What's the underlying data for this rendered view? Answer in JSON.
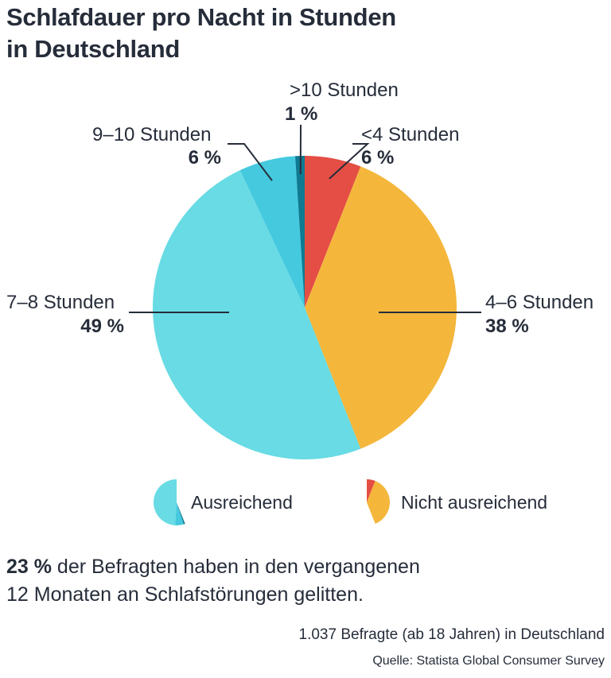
{
  "title_line1": "Schlafdauer pro Nacht in Stunden",
  "title_line2": "in Deutschland",
  "chart_data": {
    "type": "pie",
    "title": "Schlafdauer pro Nacht in Stunden in Deutschland",
    "start": "12 o'clock, clockwise",
    "slices": [
      {
        "key": "lt4",
        "label": "<4 Stunden",
        "value": 6,
        "value_label": "6 %",
        "group": "Nicht ausreichend",
        "color": "#e44e45"
      },
      {
        "key": "4to6",
        "label": "4–6 Stunden",
        "value": 38,
        "value_label": "38 %",
        "group": "Nicht ausreichend",
        "color": "#f4b73c"
      },
      {
        "key": "7to8",
        "label": "7–8 Stunden",
        "value": 49,
        "value_label": "49 %",
        "group": "Ausreichend",
        "color": "#68dbe4"
      },
      {
        "key": "9to10",
        "label": "9–10 Stunden",
        "value": 6,
        "value_label": "6 %",
        "group": "Ausreichend",
        "color": "#45c9df"
      },
      {
        "key": "gt10",
        "label": ">10 Stunden",
        "value": 1,
        "value_label": "1 %",
        "group": "Ausreichend",
        "color": "#0f7a92"
      }
    ],
    "legend": [
      {
        "label": "Ausreichend",
        "colors": [
          "#68dbe4",
          "#45c9df",
          "#0f7a92"
        ]
      },
      {
        "label": "Nicht ausreichend",
        "colors": [
          "#e44e45",
          "#f4b73c"
        ]
      }
    ],
    "legend_placement": "bottom"
  },
  "note": {
    "bold": "23 %",
    "rest_line1": " der Befragten haben in den vergangenen",
    "line2": "12 Monaten an Schlafstörungen gelitten."
  },
  "sample": "1.037 Befragte (ab 18 Jahren) in Deutschland",
  "source": "Quelle: Statista Global Consumer Survey"
}
